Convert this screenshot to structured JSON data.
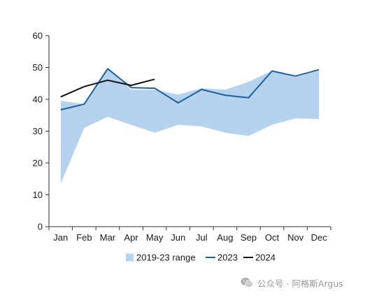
{
  "chart_data": {
    "type": "line",
    "categories": [
      "Jan",
      "Feb",
      "Mar",
      "Apr",
      "May",
      "Jun",
      "Jul",
      "Aug",
      "Sep",
      "Oct",
      "Nov",
      "Dec"
    ],
    "ylim": [
      0,
      60
    ],
    "yticks": [
      0,
      10,
      20,
      30,
      40,
      50,
      60
    ],
    "band": {
      "name": "2019-23 range",
      "color": "#b5d3ee",
      "low": [
        13.5,
        31.0,
        34.5,
        32.0,
        29.5,
        32.0,
        31.5,
        29.5,
        28.5,
        32.0,
        34.0,
        33.8
      ],
      "high": [
        39.5,
        38.5,
        49.5,
        43.0,
        43.0,
        41.5,
        43.5,
        43.0,
        45.5,
        49.0,
        47.0,
        49.0
      ]
    },
    "series": [
      {
        "name": "2023",
        "color": "#1f5f99",
        "values": [
          36.7,
          38.5,
          49.6,
          43.7,
          43.5,
          38.9,
          43.1,
          41.3,
          40.5,
          48.9,
          47.3,
          49.3
        ]
      },
      {
        "name": "2024",
        "color": "#111111",
        "values": [
          40.8,
          44.0,
          46.0,
          44.4,
          46.3,
          null,
          null,
          null,
          null,
          null,
          null,
          null
        ]
      }
    ],
    "grid": false,
    "legend_placement": "bottom"
  },
  "watermark": {
    "text": "公众号 · 阿格斯Argus",
    "icon": "wechat-icon"
  }
}
